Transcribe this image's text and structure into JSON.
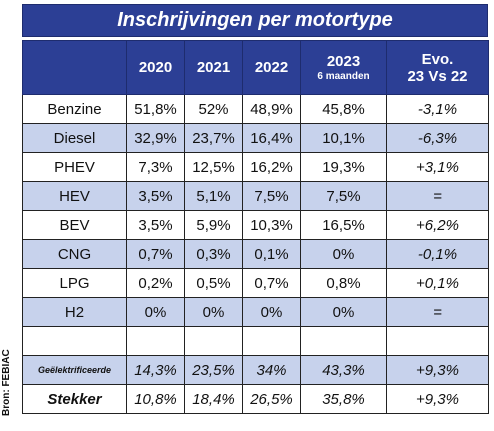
{
  "title": "Inschrijvingen per motortype",
  "source": "Bron: FEBIAC",
  "header": {
    "y2020": "2020",
    "y2021": "2021",
    "y2022": "2022",
    "y2023": "2023",
    "y2023_sub": "6 maanden",
    "evo_line1": "Evo.",
    "evo_line2": "23 Vs 22"
  },
  "rows": [
    {
      "label": "Benzine",
      "v2020": "51,8%",
      "v2021": "52%",
      "v2022": "48,9%",
      "v2023": "45,8%",
      "evo": "-3,1%"
    },
    {
      "label": "Diesel",
      "v2020": "32,9%",
      "v2021": "23,7%",
      "v2022": "16,4%",
      "v2023": "10,1%",
      "evo": "-6,3%"
    },
    {
      "label": "PHEV",
      "v2020": "7,3%",
      "v2021": "12,5%",
      "v2022": "16,2%",
      "v2023": "19,3%",
      "evo": "+3,1%"
    },
    {
      "label": "HEV",
      "v2020": "3,5%",
      "v2021": "5,1%",
      "v2022": "7,5%",
      "v2023": "7,5%",
      "evo": "="
    },
    {
      "label": "BEV",
      "v2020": "3,5%",
      "v2021": "5,9%",
      "v2022": "10,3%",
      "v2023": "16,5%",
      "evo": "+6,2%"
    },
    {
      "label": "CNG",
      "v2020": "0,7%",
      "v2021": "0,3%",
      "v2022": "0,1%",
      "v2023": "0%",
      "evo": "-0,1%"
    },
    {
      "label": "LPG",
      "v2020": "0,2%",
      "v2021": "0,5%",
      "v2022": "0,7%",
      "v2023": "0,8%",
      "evo": "+0,1%"
    },
    {
      "label": "H2",
      "v2020": "0%",
      "v2021": "0%",
      "v2022": "0%",
      "v2023": "0%",
      "evo": "="
    }
  ],
  "geelektrificeerde": {
    "label": "Geëlektrificeerde",
    "v2020": "14,3%",
    "v2021": "23,5%",
    "v2022": "34%",
    "v2023": "43,3%",
    "evo": "+9,3%"
  },
  "stekker": {
    "label": "Stekker",
    "v2020": "10,8%",
    "v2021": "18,4%",
    "v2022": "26,5%",
    "v2023": "35,8%",
    "evo": "+9,3%"
  }
}
